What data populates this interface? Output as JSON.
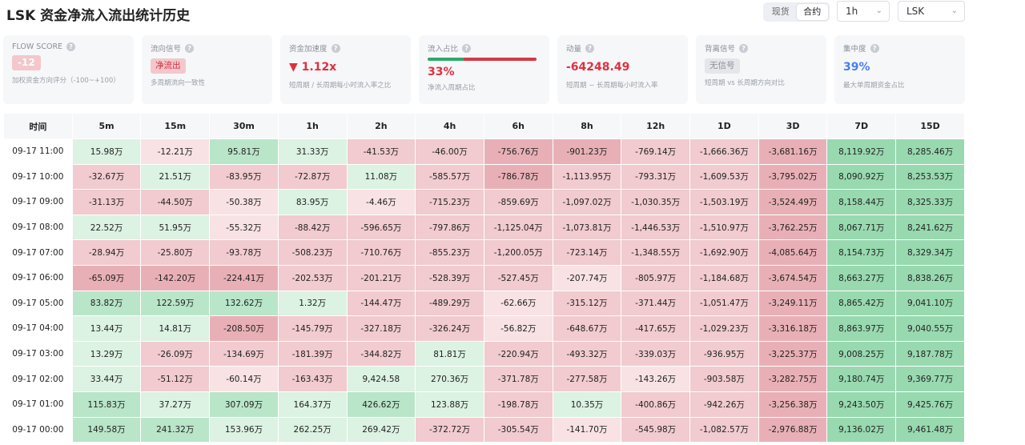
{
  "header": {
    "title": "LSK 资金净流入流出统计历史",
    "market_tabs": [
      "现货",
      "合约"
    ],
    "market_active": 1,
    "interval": "1h",
    "symbol": "LSK"
  },
  "colors": {
    "positive": "#98d9b0",
    "negative": "#e8b0b6",
    "accent_red": "#e0303e",
    "accent_blue": "#4a7ef0",
    "card_bg": "#f6f7f9"
  },
  "cards": {
    "flow_score": {
      "title": "FLOW SCORE",
      "value": "-12",
      "sub": "加权资金方向评分（-100~+100）"
    },
    "flow_signal": {
      "title": "流向信号",
      "value": "净流出",
      "sub": "多周期流向一致性"
    },
    "acceleration": {
      "title": "资金加速度",
      "value": "▼ 1.12x",
      "sub": "短周期 / 长周期每小时流入率之比"
    },
    "inflow_ratio": {
      "title": "流入占比",
      "value": "33%",
      "ratio": 0.33,
      "sub": "净流入周期占比"
    },
    "momentum": {
      "title": "动量",
      "value": "-64248.49",
      "sub": "短周期 − 长周期每小时流入率"
    },
    "divergence": {
      "title": "背离信号",
      "value": "无信号",
      "sub": "短周期 vs 长周期方向对比"
    },
    "concentration": {
      "title": "集中度",
      "value": "39%",
      "sub": "最大单周期资金占比"
    }
  },
  "table": {
    "headers": [
      "时间",
      "5m",
      "15m",
      "30m",
      "1h",
      "2h",
      "4h",
      "6h",
      "8h",
      "12h",
      "1D",
      "3D",
      "7D",
      "15D"
    ],
    "rows": [
      {
        "time": "09-17 11:00",
        "cells": [
          "15.98万",
          "-12.21万",
          "95.81万",
          "31.33万",
          "-41.53万",
          "-46.00万",
          "-756.76万",
          "-901.23万",
          "-769.14万",
          "-1,666.36万",
          "-3,681.16万",
          "8,119.92万",
          "8,285.46万"
        ],
        "levels": [
          1,
          -1,
          2,
          1,
          -2,
          -2,
          -3,
          -3,
          -2,
          -2,
          -3,
          3,
          3
        ]
      },
      {
        "time": "09-17 10:00",
        "cells": [
          "-32.67万",
          "21.51万",
          "-83.95万",
          "-72.87万",
          "11.08万",
          "-585.57万",
          "-786.78万",
          "-1,113.95万",
          "-793.31万",
          "-1,609.53万",
          "-3,795.02万",
          "8,090.92万",
          "8,253.53万"
        ],
        "levels": [
          -2,
          1,
          -2,
          -2,
          1,
          -2,
          -3,
          -2,
          -2,
          -2,
          -3,
          3,
          3
        ]
      },
      {
        "time": "09-17 09:00",
        "cells": [
          "-31.13万",
          "-44.50万",
          "-50.38万",
          "83.95万",
          "-4.46万",
          "-715.23万",
          "-859.69万",
          "-1,097.02万",
          "-1,030.35万",
          "-1,503.19万",
          "-3,524.49万",
          "8,158.44万",
          "8,325.33万"
        ],
        "levels": [
          -2,
          -2,
          -1,
          1,
          -1,
          -2,
          -2,
          -2,
          -2,
          -2,
          -3,
          3,
          3
        ]
      },
      {
        "time": "09-17 08:00",
        "cells": [
          "22.52万",
          "51.95万",
          "-55.32万",
          "-88.42万",
          "-596.65万",
          "-797.86万",
          "-1,125.04万",
          "-1,073.81万",
          "-1,446.53万",
          "-1,510.97万",
          "-3,762.25万",
          "8,067.71万",
          "8,241.62万"
        ],
        "levels": [
          1,
          1,
          -1,
          -2,
          -2,
          -2,
          -2,
          -2,
          -2,
          -2,
          -3,
          3,
          3
        ]
      },
      {
        "time": "09-17 07:00",
        "cells": [
          "-28.94万",
          "-25.80万",
          "-93.78万",
          "-508.23万",
          "-710.76万",
          "-855.23万",
          "-1,200.05万",
          "-723.14万",
          "-1,348.55万",
          "-1,692.90万",
          "-4,085.64万",
          "8,154.73万",
          "8,329.34万"
        ],
        "levels": [
          -2,
          -2,
          -2,
          -2,
          -2,
          -2,
          -2,
          -2,
          -2,
          -2,
          -3,
          3,
          3
        ]
      },
      {
        "time": "09-17 06:00",
        "cells": [
          "-65.09万",
          "-142.20万",
          "-224.41万",
          "-202.53万",
          "-201.21万",
          "-528.39万",
          "-527.45万",
          "-207.74万",
          "-805.97万",
          "-1,184.68万",
          "-3,674.54万",
          "8,663.27万",
          "8,838.26万"
        ],
        "levels": [
          -3,
          -3,
          -3,
          -2,
          -2,
          -2,
          -2,
          -1,
          -2,
          -2,
          -3,
          3,
          3
        ]
      },
      {
        "time": "09-17 05:00",
        "cells": [
          "83.82万",
          "122.59万",
          "132.62万",
          "1.32万",
          "-144.47万",
          "-489.29万",
          "-62.66万",
          "-315.12万",
          "-371.44万",
          "-1,051.47万",
          "-3,249.11万",
          "8,865.42万",
          "9,041.10万"
        ],
        "levels": [
          2,
          2,
          2,
          1,
          -2,
          -2,
          -1,
          -2,
          -2,
          -2,
          -3,
          3,
          3
        ]
      },
      {
        "time": "09-17 04:00",
        "cells": [
          "13.44万",
          "14.81万",
          "-208.50万",
          "-145.79万",
          "-327.18万",
          "-326.24万",
          "-56.82万",
          "-648.67万",
          "-417.65万",
          "-1,029.23万",
          "-3,316.18万",
          "8,863.97万",
          "9,040.55万"
        ],
        "levels": [
          1,
          1,
          -3,
          -2,
          -2,
          -2,
          -1,
          -2,
          -2,
          -2,
          -3,
          3,
          3
        ]
      },
      {
        "time": "09-17 03:00",
        "cells": [
          "13.29万",
          "-26.09万",
          "-134.69万",
          "-181.39万",
          "-344.82万",
          "81.81万",
          "-220.94万",
          "-493.32万",
          "-339.03万",
          "-936.95万",
          "-3,225.37万",
          "9,008.25万",
          "9,187.78万"
        ],
        "levels": [
          1,
          -2,
          -2,
          -2,
          -2,
          1,
          -2,
          -2,
          -2,
          -2,
          -3,
          3,
          3
        ]
      },
      {
        "time": "09-17 02:00",
        "cells": [
          "33.44万",
          "-51.12万",
          "-60.14万",
          "-163.43万",
          "9,424.58",
          "270.36万",
          "-371.78万",
          "-277.58万",
          "-143.26万",
          "-903.58万",
          "-3,282.75万",
          "9,180.74万",
          "9,369.77万"
        ],
        "levels": [
          1,
          -2,
          -1,
          -2,
          1,
          1,
          -2,
          -2,
          -1,
          -2,
          -3,
          3,
          3
        ]
      },
      {
        "time": "09-17 01:00",
        "cells": [
          "115.83万",
          "37.27万",
          "307.09万",
          "164.37万",
          "426.62万",
          "123.88万",
          "-198.78万",
          "10.35万",
          "-400.86万",
          "-942.26万",
          "-3,256.38万",
          "9,243.50万",
          "9,425.76万"
        ],
        "levels": [
          2,
          1,
          2,
          1,
          2,
          1,
          -2,
          1,
          -2,
          -2,
          -3,
          3,
          3
        ]
      },
      {
        "time": "09-17 00:00",
        "cells": [
          "149.58万",
          "241.32万",
          "153.96万",
          "262.25万",
          "269.42万",
          "-372.72万",
          "-305.54万",
          "-141.70万",
          "-545.98万",
          "-1,082.57万",
          "-2,976.88万",
          "9,136.02万",
          "9,461.48万"
        ],
        "levels": [
          2,
          2,
          1,
          1,
          1,
          -2,
          -2,
          -1,
          -2,
          -2,
          -3,
          3,
          3
        ]
      }
    ]
  }
}
